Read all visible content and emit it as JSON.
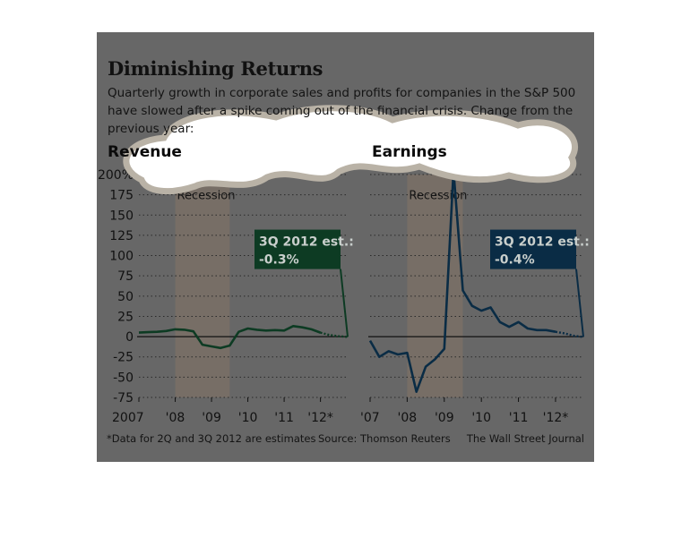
{
  "title": "Diminishing Returns",
  "subtitle": "Quarterly growth in corporate sales and profits for companies in the S&P 500 have slowed after a spike coming out of the financial crisis. Change from the previous year:",
  "footnote": "*Data for 2Q and 3Q 2012 are estimates",
  "source": "Source: Thomson Reuters",
  "credit": "The Wall Street Journal",
  "colors": {
    "background": "#676767",
    "recession_band": "#7a7066",
    "revenue": "#0d3b23",
    "earnings": "#0a2c45",
    "text": "#111111",
    "grid": "#2a2a2a"
  },
  "chart_data": [
    {
      "type": "line",
      "panel": "revenue",
      "title": "Revenue",
      "ylim": [
        -75,
        200
      ],
      "yticks": [
        200,
        175,
        150,
        125,
        100,
        75,
        50,
        25,
        0,
        -25,
        -50,
        -75
      ],
      "ytick_labels": [
        "200%",
        "175",
        "150",
        "125",
        "100",
        "75",
        "50",
        "25",
        "0",
        "-25",
        "-50",
        "-75"
      ],
      "grid": true,
      "xlim": [
        2007.0,
        2012.75
      ],
      "xticks": [
        2007.0,
        2008.0,
        2009.0,
        2010.0,
        2011.0,
        2012.0
      ],
      "xtick_labels": [
        "2007",
        "'08",
        "'09",
        "'10",
        "'11",
        "'12*"
      ],
      "recession": {
        "label": "Recession",
        "start": 2008.0,
        "end": 2009.5
      },
      "callout": {
        "label": "3Q 2012 est.:",
        "value": "-0.3%",
        "x": 2012.75,
        "y": -0.3
      },
      "series": [
        {
          "actual": [
            [
              2007.0,
              5
            ],
            [
              2007.25,
              5.5
            ],
            [
              2007.5,
              6
            ],
            [
              2007.75,
              7
            ],
            [
              2008.0,
              9
            ],
            [
              2008.25,
              8.5
            ],
            [
              2008.5,
              6.5
            ],
            [
              2008.75,
              -10
            ],
            [
              2009.0,
              -12
            ],
            [
              2009.25,
              -14
            ],
            [
              2009.5,
              -11
            ],
            [
              2009.75,
              6
            ],
            [
              2010.0,
              10
            ],
            [
              2010.25,
              8.5
            ],
            [
              2010.5,
              7.5
            ],
            [
              2010.75,
              8
            ],
            [
              2011.0,
              7.5
            ],
            [
              2011.25,
              13
            ],
            [
              2011.5,
              11.5
            ],
            [
              2011.75,
              9
            ],
            [
              2012.0,
              5
            ]
          ],
          "estimate": [
            [
              2012.0,
              5
            ],
            [
              2012.25,
              2
            ],
            [
              2012.5,
              0.5
            ],
            [
              2012.75,
              -0.3
            ]
          ]
        }
      ]
    },
    {
      "type": "line",
      "panel": "earnings",
      "title": "Earnings",
      "ylim": [
        -75,
        200
      ],
      "grid": true,
      "xlim": [
        2007.0,
        2012.75
      ],
      "xticks": [
        2007.0,
        2008.0,
        2009.0,
        2010.0,
        2011.0,
        2012.0
      ],
      "xtick_labels": [
        "'07",
        "'08",
        "'09",
        "'10",
        "'11",
        "'12*"
      ],
      "recession": {
        "label": "Recession",
        "start": 2008.0,
        "end": 2009.5
      },
      "callout": {
        "label": "3Q 2012 est.:",
        "value": "-0.4%",
        "x": 2012.75,
        "y": -0.4
      },
      "series": [
        {
          "actual": [
            [
              2007.0,
              -5
            ],
            [
              2007.25,
              -25
            ],
            [
              2007.5,
              -18
            ],
            [
              2007.75,
              -22
            ],
            [
              2008.0,
              -20
            ],
            [
              2008.25,
              -68
            ],
            [
              2008.5,
              -37
            ],
            [
              2008.75,
              -28
            ],
            [
              2009.0,
              -15
            ],
            [
              2009.25,
              205
            ],
            [
              2009.5,
              57
            ],
            [
              2009.75,
              38
            ],
            [
              2010.0,
              32
            ],
            [
              2010.25,
              36
            ],
            [
              2010.5,
              18
            ],
            [
              2010.75,
              12
            ],
            [
              2011.0,
              18
            ],
            [
              2011.25,
              10
            ],
            [
              2011.5,
              8
            ],
            [
              2011.75,
              8
            ],
            [
              2012.0,
              6
            ]
          ],
          "estimate": [
            [
              2012.0,
              6
            ],
            [
              2012.25,
              4
            ],
            [
              2012.5,
              1
            ],
            [
              2012.75,
              -0.4
            ]
          ]
        }
      ]
    }
  ]
}
